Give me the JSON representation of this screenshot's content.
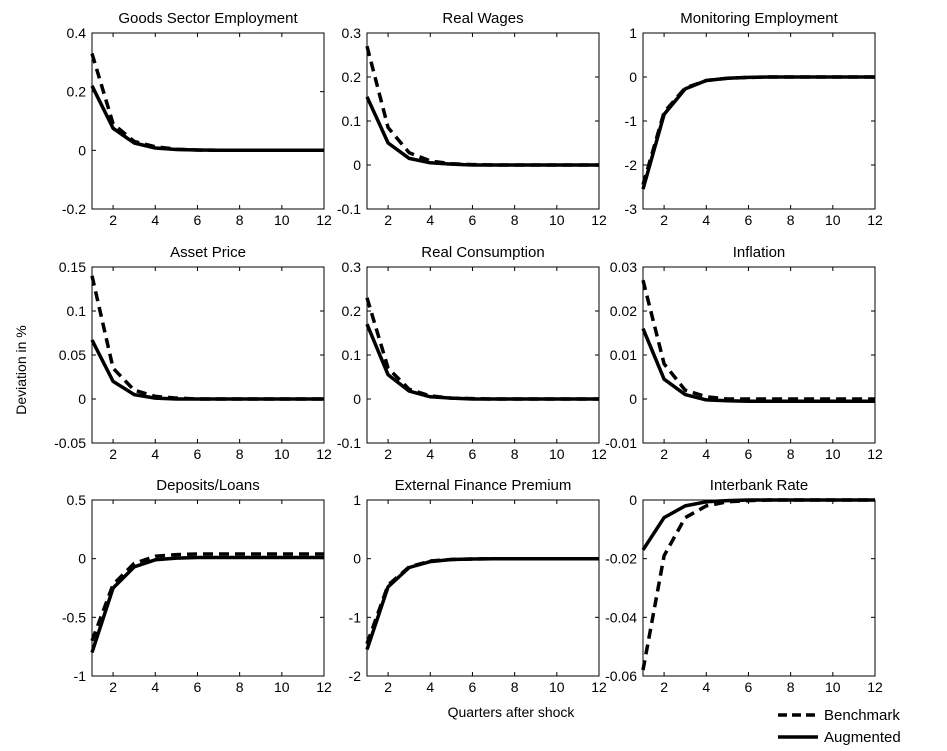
{
  "figure": {
    "ylabel": "Deviation in %",
    "xlabel": "Quarters after shock",
    "legend": {
      "placement": "bottom-right",
      "entries": [
        {
          "name": "Benchmark",
          "style": "dashed"
        },
        {
          "name": "Augmented",
          "style": "solid"
        }
      ]
    }
  },
  "chart_data": [
    {
      "type": "line",
      "title": "Goods Sector Employment",
      "x": [
        1,
        2,
        3,
        4,
        5,
        6,
        7,
        8,
        9,
        10,
        11,
        12
      ],
      "xlim": [
        1,
        12
      ],
      "xticks": [
        "2",
        "4",
        "6",
        "8",
        "10",
        "12"
      ],
      "ylim": [
        -0.2,
        0.4
      ],
      "yticks": [
        "-0.2",
        "0",
        "0.2",
        "0.4"
      ],
      "series": [
        {
          "name": "Benchmark",
          "values": [
            0.33,
            0.09,
            0.03,
            0.012,
            0.004,
            0.001,
            0,
            0,
            0,
            0,
            0,
            0
          ]
        },
        {
          "name": "Augmented",
          "values": [
            0.22,
            0.075,
            0.025,
            0.008,
            0.003,
            0.001,
            0,
            0,
            0,
            0,
            0,
            0
          ]
        }
      ]
    },
    {
      "type": "line",
      "title": "Real Wages",
      "x": [
        1,
        2,
        3,
        4,
        5,
        6,
        7,
        8,
        9,
        10,
        11,
        12
      ],
      "xlim": [
        1,
        12
      ],
      "xticks": [
        "2",
        "4",
        "6",
        "8",
        "10",
        "12"
      ],
      "ylim": [
        -0.1,
        0.3
      ],
      "yticks": [
        "-0.1",
        "0",
        "0.1",
        "0.2",
        "0.3"
      ],
      "series": [
        {
          "name": "Benchmark",
          "values": [
            0.27,
            0.085,
            0.028,
            0.009,
            0.003,
            0.001,
            0,
            0,
            0,
            0,
            0,
            0
          ]
        },
        {
          "name": "Augmented",
          "values": [
            0.155,
            0.05,
            0.015,
            0.005,
            0.002,
            0,
            0,
            0,
            0,
            0,
            0,
            0
          ]
        }
      ]
    },
    {
      "type": "line",
      "title": "Monitoring Employment",
      "x": [
        1,
        2,
        3,
        4,
        5,
        6,
        7,
        8,
        9,
        10,
        11,
        12
      ],
      "xlim": [
        1,
        12
      ],
      "xticks": [
        "2",
        "4",
        "6",
        "8",
        "10",
        "12"
      ],
      "ylim": [
        -3,
        1
      ],
      "yticks": [
        "-3",
        "-2",
        "-1",
        "0",
        "1"
      ],
      "series": [
        {
          "name": "Benchmark",
          "values": [
            -2.45,
            -0.8,
            -0.25,
            -0.08,
            -0.03,
            -0.01,
            0,
            0,
            0,
            0,
            0,
            0
          ]
        },
        {
          "name": "Augmented",
          "values": [
            -2.55,
            -0.85,
            -0.27,
            -0.08,
            -0.03,
            -0.01,
            0,
            0,
            0,
            0,
            0,
            0
          ]
        }
      ]
    },
    {
      "type": "line",
      "title": "Asset Price",
      "x": [
        1,
        2,
        3,
        4,
        5,
        6,
        7,
        8,
        9,
        10,
        11,
        12
      ],
      "xlim": [
        1,
        12
      ],
      "xticks": [
        "2",
        "4",
        "6",
        "8",
        "10",
        "12"
      ],
      "ylim": [
        -0.05,
        0.15
      ],
      "yticks": [
        "-0.05",
        "0",
        "0.05",
        "0.1",
        "0.15"
      ],
      "series": [
        {
          "name": "Benchmark",
          "values": [
            0.14,
            0.035,
            0.01,
            0.003,
            0.001,
            0,
            0,
            0,
            0,
            0,
            0,
            0
          ]
        },
        {
          "name": "Augmented",
          "values": [
            0.067,
            0.02,
            0.005,
            0.001,
            0,
            0,
            0,
            0,
            0,
            0,
            0,
            0
          ]
        }
      ]
    },
    {
      "type": "line",
      "title": "Real Consumption",
      "x": [
        1,
        2,
        3,
        4,
        5,
        6,
        7,
        8,
        9,
        10,
        11,
        12
      ],
      "xlim": [
        1,
        12
      ],
      "xticks": [
        "2",
        "4",
        "6",
        "8",
        "10",
        "12"
      ],
      "ylim": [
        -0.1,
        0.3
      ],
      "yticks": [
        "-0.1",
        "0",
        "0.1",
        "0.2",
        "0.3"
      ],
      "series": [
        {
          "name": "Benchmark",
          "values": [
            0.23,
            0.07,
            0.022,
            0.007,
            0.002,
            0.001,
            0,
            0,
            0,
            0,
            0,
            0
          ]
        },
        {
          "name": "Augmented",
          "values": [
            0.17,
            0.055,
            0.018,
            0.005,
            0.002,
            0,
            0,
            0,
            0,
            0,
            0,
            0
          ]
        }
      ]
    },
    {
      "type": "line",
      "title": "Inflation",
      "x": [
        1,
        2,
        3,
        4,
        5,
        6,
        7,
        8,
        9,
        10,
        11,
        12
      ],
      "xlim": [
        1,
        12
      ],
      "xticks": [
        "2",
        "4",
        "6",
        "8",
        "10",
        "12"
      ],
      "ylim": [
        -0.01,
        0.03
      ],
      "yticks": [
        "-0.01",
        "0",
        "0.01",
        "0.02",
        "0.03"
      ],
      "series": [
        {
          "name": "Benchmark",
          "values": [
            0.027,
            0.008,
            0.002,
            0.0005,
            0,
            0,
            0,
            0,
            0,
            0,
            0,
            0
          ]
        },
        {
          "name": "Augmented",
          "values": [
            0.016,
            0.0045,
            0.001,
            -0.0002,
            -0.0004,
            -0.0005,
            -0.0005,
            -0.0005,
            -0.0005,
            -0.0005,
            -0.0005,
            -0.0005
          ]
        }
      ]
    },
    {
      "type": "line",
      "title": "Deposits/Loans",
      "x": [
        1,
        2,
        3,
        4,
        5,
        6,
        7,
        8,
        9,
        10,
        11,
        12
      ],
      "xlim": [
        1,
        12
      ],
      "xticks": [
        "2",
        "4",
        "6",
        "8",
        "10",
        "12"
      ],
      "ylim": [
        -1,
        0.5
      ],
      "yticks": [
        "-1",
        "-0.5",
        "0",
        "0.5"
      ],
      "series": [
        {
          "name": "Benchmark",
          "values": [
            -0.7,
            -0.22,
            -0.04,
            0.02,
            0.035,
            0.04,
            0.04,
            0.04,
            0.04,
            0.04,
            0.04,
            0.04
          ]
        },
        {
          "name": "Augmented",
          "values": [
            -0.8,
            -0.25,
            -0.07,
            -0.01,
            0.005,
            0.01,
            0.01,
            0.01,
            0.01,
            0.01,
            0.01,
            0.01
          ]
        }
      ]
    },
    {
      "type": "line",
      "title": "External Finance Premium",
      "x": [
        1,
        2,
        3,
        4,
        5,
        6,
        7,
        8,
        9,
        10,
        11,
        12
      ],
      "xlim": [
        1,
        12
      ],
      "xticks": [
        "2",
        "4",
        "6",
        "8",
        "10",
        "12"
      ],
      "ylim": [
        -2,
        1
      ],
      "yticks": [
        "-2",
        "-1",
        "0",
        "1"
      ],
      "series": [
        {
          "name": "Benchmark",
          "values": [
            -1.45,
            -0.45,
            -0.14,
            -0.04,
            -0.015,
            -0.005,
            0,
            0,
            0,
            0,
            0,
            0
          ]
        },
        {
          "name": "Augmented",
          "values": [
            -1.55,
            -0.48,
            -0.15,
            -0.05,
            -0.015,
            -0.005,
            0,
            0,
            0,
            0,
            0,
            0
          ]
        }
      ]
    },
    {
      "type": "line",
      "title": "Interbank Rate",
      "x": [
        1,
        2,
        3,
        4,
        5,
        6,
        7,
        8,
        9,
        10,
        11,
        12
      ],
      "xlim": [
        1,
        12
      ],
      "xticks": [
        "2",
        "4",
        "6",
        "8",
        "10",
        "12"
      ],
      "ylim": [
        -0.06,
        0
      ],
      "yticks": [
        "-0.06",
        "-0.04",
        "-0.02",
        "0"
      ],
      "series": [
        {
          "name": "Benchmark",
          "values": [
            -0.058,
            -0.019,
            -0.006,
            -0.002,
            -0.0006,
            -0.0002,
            0,
            0,
            0,
            0,
            0,
            0
          ]
        },
        {
          "name": "Augmented",
          "values": [
            -0.017,
            -0.006,
            -0.002,
            -0.0006,
            -0.0002,
            0,
            0,
            0,
            0,
            0,
            0,
            0
          ]
        }
      ]
    }
  ]
}
